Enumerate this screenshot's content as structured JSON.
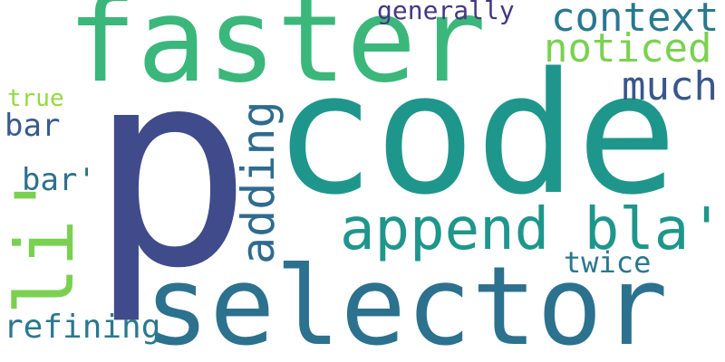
{
  "word_cloud": {
    "words": [
      {
        "text": "p",
        "color": "#3f4b8a"
      },
      {
        "text": "code",
        "color": "#1f968b"
      },
      {
        "text": "faster",
        "color": "#3bb77b"
      },
      {
        "text": "selector",
        "color": "#2c718e"
      },
      {
        "text": "append bla'",
        "color": "#1f968b"
      },
      {
        "text": "li'",
        "color": "#7ad151"
      },
      {
        "text": "adding",
        "color": "#2f6b8e"
      },
      {
        "text": "context",
        "color": "#2a788e"
      },
      {
        "text": "noticed",
        "color": "#7ad151"
      },
      {
        "text": "much",
        "color": "#39568c"
      },
      {
        "text": "generally",
        "color": "#453781"
      },
      {
        "text": "true",
        "color": "#95d840"
      },
      {
        "text": "bar",
        "color": "#365c8d"
      },
      {
        "text": "bar'",
        "color": "#2d708e"
      },
      {
        "text": "twice",
        "color": "#2a788e"
      },
      {
        "text": "refining",
        "color": "#2a788e"
      }
    ]
  }
}
